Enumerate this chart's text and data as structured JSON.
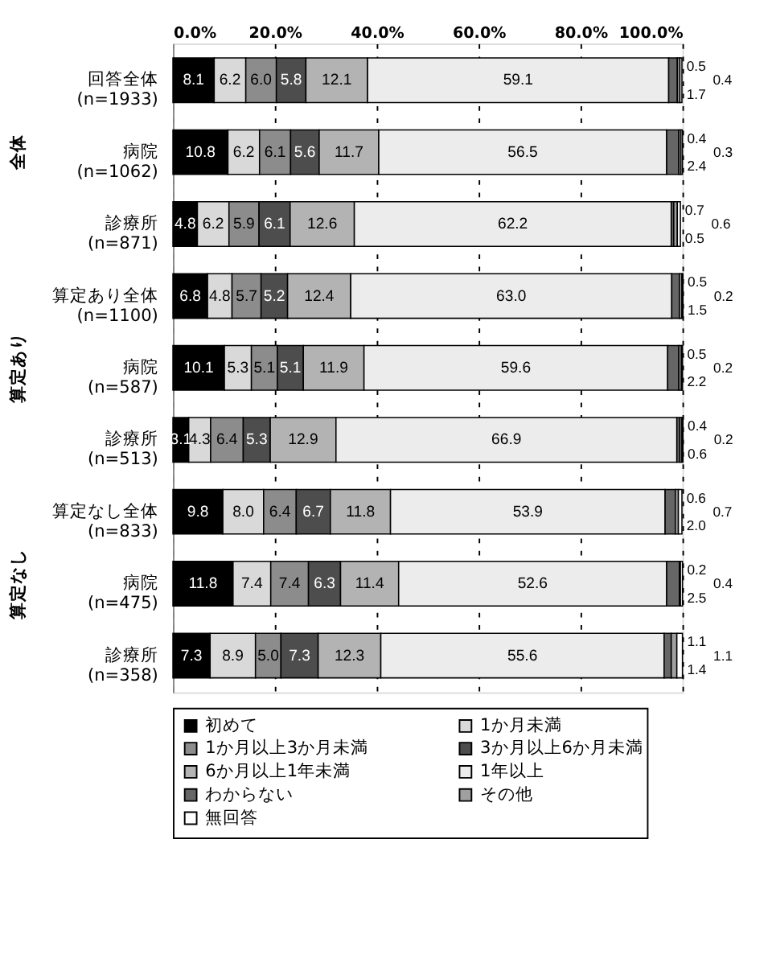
{
  "chart_data": {
    "type": "bar",
    "orientation": "horizontal",
    "stacked": true,
    "categories": [
      "回答全体\n(n=1933)",
      "病院\n(n=1062)",
      "診療所\n(n=871)",
      "算定あり全体\n(n=1100)",
      "病院\n(n=587)",
      "診療所\n(n=513)",
      "算定なし全体\n(n=833)",
      "病院\n(n=475)",
      "診療所\n(n=358)"
    ],
    "series": [
      {
        "name": "初めて",
        "color": "#000000",
        "values": [
          8.1,
          10.8,
          4.8,
          6.8,
          10.1,
          3.1,
          9.8,
          11.8,
          7.3
        ],
        "value_labels": [
          "8.1",
          "10.8",
          "4.8",
          "6.8",
          "10.1",
          "3.1",
          "9.8",
          "11.8",
          "7.3"
        ]
      },
      {
        "name": "1か月未満",
        "color": "#d9d9d9",
        "values": [
          6.2,
          6.2,
          6.2,
          4.8,
          5.3,
          4.3,
          8.0,
          7.4,
          8.9
        ],
        "value_labels": [
          "6.2",
          "6.2",
          "6.2",
          "4.8",
          "5.3",
          "4.3",
          "8.0",
          "7.4",
          "8.9"
        ]
      },
      {
        "name": "1か月以上3か月未満",
        "color": "#8c8c8c",
        "values": [
          6.0,
          6.1,
          5.9,
          5.7,
          5.1,
          6.4,
          6.4,
          7.4,
          5.0
        ],
        "value_labels": [
          "6.0",
          "6.1",
          "5.9",
          "5.7",
          "5.1",
          "6.4",
          "6.4",
          "7.4",
          "5.0"
        ]
      },
      {
        "name": "3か月以上6か月未満",
        "color": "#4d4d4d",
        "values": [
          5.8,
          5.6,
          6.1,
          5.2,
          5.1,
          5.3,
          6.7,
          6.3,
          7.3
        ],
        "value_labels": [
          "5.8",
          "5.6",
          "6.1",
          "5.2",
          "5.1",
          "5.3",
          "6.7",
          "6.3",
          "7.3"
        ]
      },
      {
        "name": "6か月以上1年未満",
        "color": "#b3b3b3",
        "values": [
          12.1,
          11.7,
          12.6,
          12.4,
          11.9,
          12.9,
          11.8,
          11.4,
          12.3
        ],
        "value_labels": [
          "12.1",
          "11.7",
          "12.6",
          "12.4",
          "11.9",
          "12.9",
          "11.8",
          "11.4",
          "12.3"
        ]
      },
      {
        "name": "1年以上",
        "color": "#ececec",
        "values": [
          59.1,
          56.5,
          62.2,
          63.0,
          59.6,
          66.9,
          53.9,
          52.6,
          55.6
        ],
        "value_labels": [
          "59.1",
          "56.5",
          "62.2",
          "63.0",
          "59.6",
          "66.9",
          "53.9",
          "52.6",
          "55.6"
        ]
      },
      {
        "name": "わからない",
        "color": "#666666",
        "values": [
          1.7,
          2.4,
          0.5,
          1.5,
          2.2,
          0.6,
          2.0,
          2.5,
          1.4
        ],
        "value_labels": [
          "1.7",
          "2.4",
          "0.5",
          "1.5",
          "2.2",
          "0.6",
          "2.0",
          "2.5",
          "1.4"
        ]
      },
      {
        "name": "その他",
        "color": "#a0a0a0",
        "values": [
          0.5,
          0.4,
          0.7,
          0.5,
          0.5,
          0.4,
          0.6,
          0.2,
          1.1
        ],
        "value_labels": [
          "0.5",
          "0.4",
          "0.7",
          "0.5",
          "0.5",
          "0.4",
          "0.6",
          "0.2",
          "1.1"
        ]
      },
      {
        "name": "無回答",
        "color": "#ffffff",
        "values": [
          0.4,
          0.3,
          0.6,
          0.2,
          0.2,
          0.2,
          0.7,
          0.4,
          1.1
        ],
        "value_labels": [
          "0.4",
          "0.3",
          "0.6",
          "0.2",
          "0.2",
          "0.2",
          "0.7",
          "0.4",
          "1.1"
        ]
      }
    ],
    "xlim": [
      0,
      100
    ],
    "xticks": [
      {
        "value": 0,
        "label": "0.0%"
      },
      {
        "value": 20,
        "label": "20.0%"
      },
      {
        "value": 40,
        "label": "40.0%"
      },
      {
        "value": 60,
        "label": "60.0%"
      },
      {
        "value": 80,
        "label": "80.0%"
      },
      {
        "value": 100,
        "label": "100.0%"
      }
    ],
    "annotations": [
      "全体",
      "算定あり",
      "算定なし"
    ],
    "grid": "x",
    "legend": "bottom"
  }
}
